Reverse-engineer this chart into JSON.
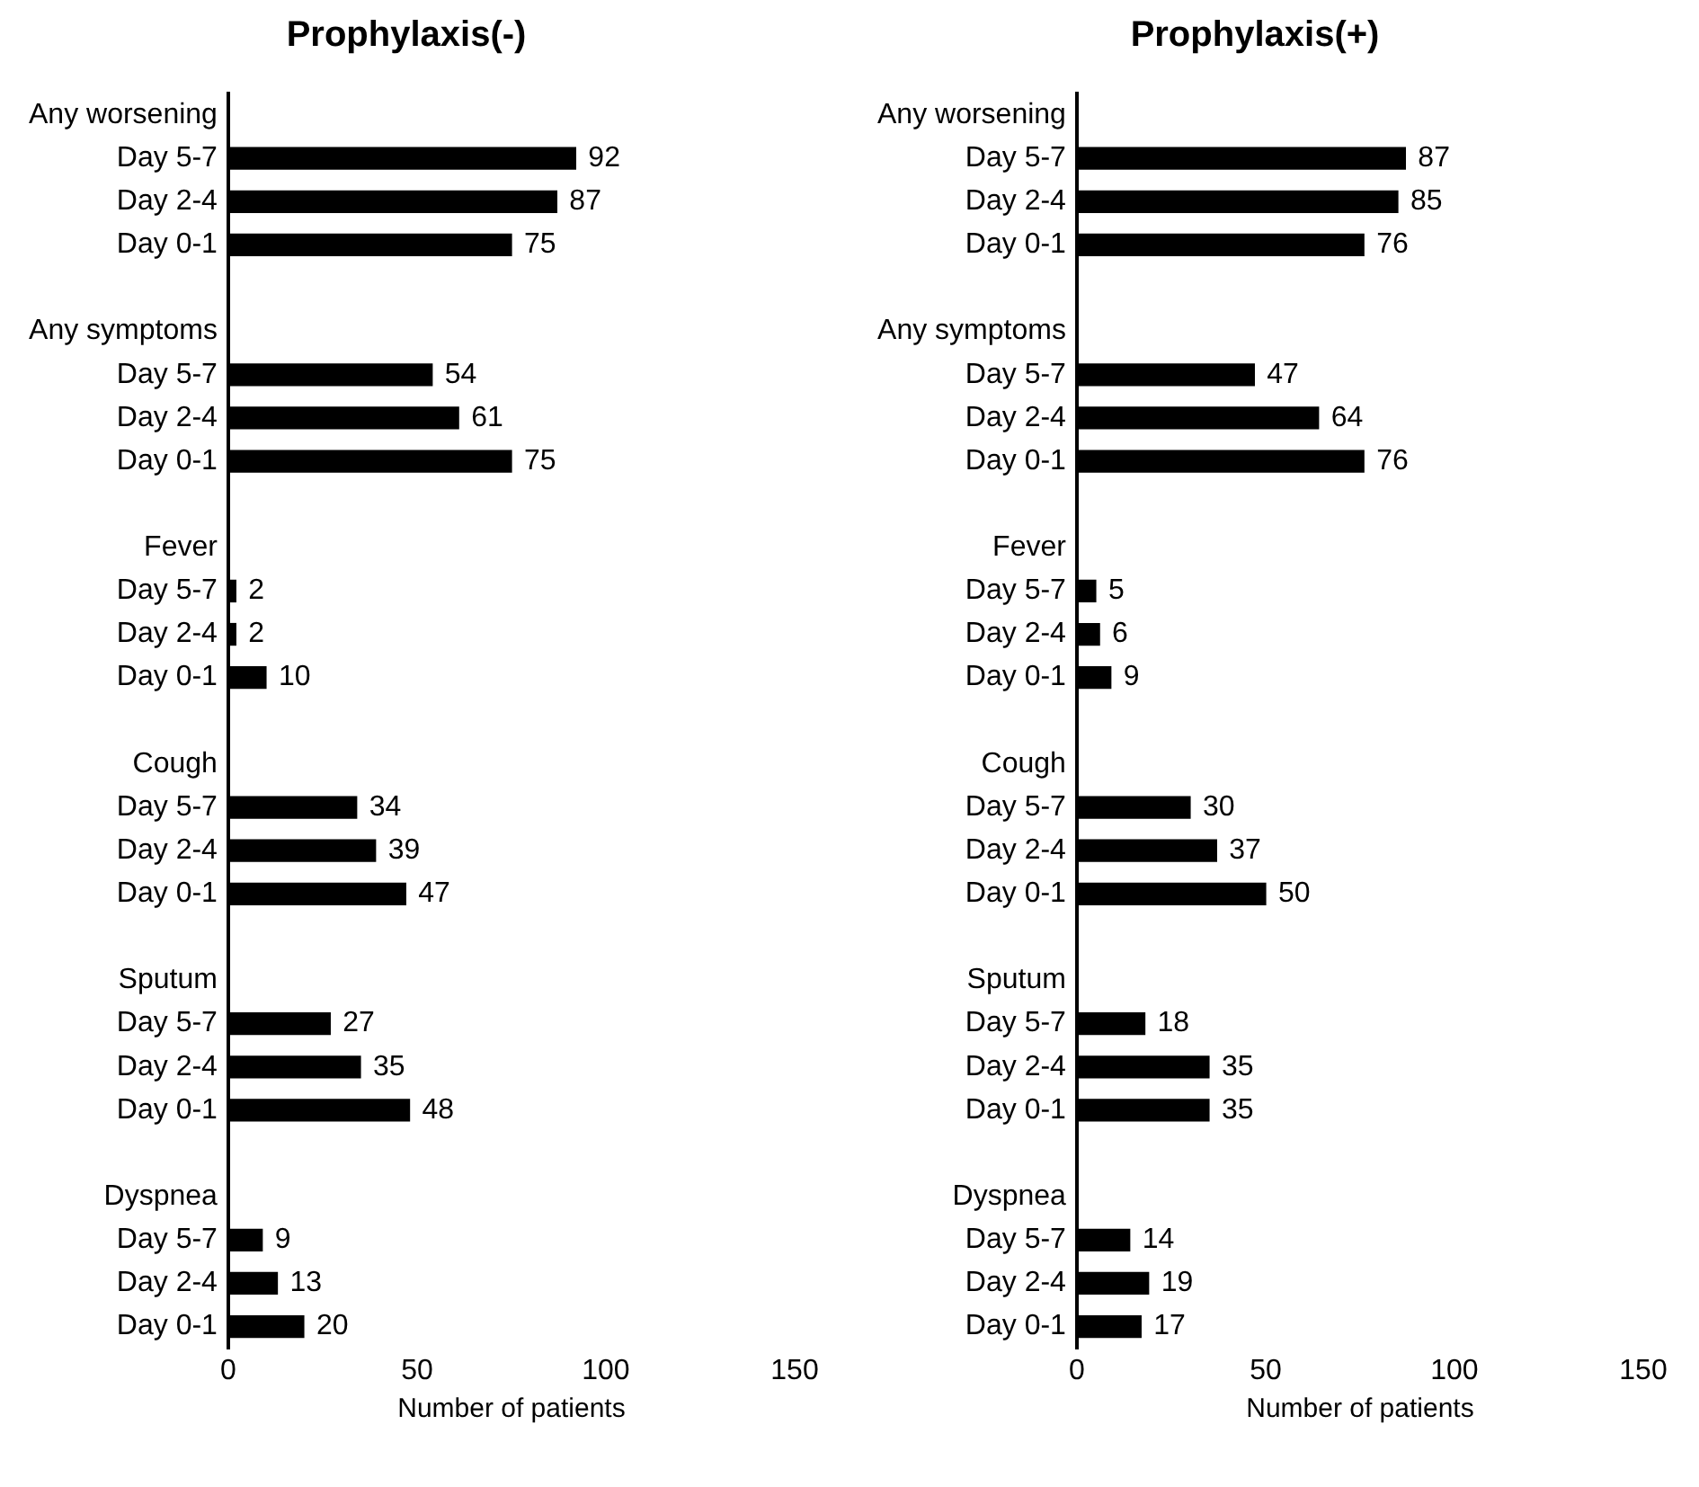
{
  "chart_data": [
    {
      "type": "bar",
      "orientation": "horizontal",
      "title": "Prophylaxis(-)",
      "xlabel": "Number of patients",
      "categories": [
        "Any worsening",
        "Day 5-7",
        "Day 2-4",
        "Day 0-1",
        null,
        "Any symptoms",
        "Day 5-7",
        "Day 2-4",
        "Day 0-1",
        null,
        "Fever",
        "Day 5-7",
        "Day 2-4",
        "Day 0-1",
        null,
        "Cough",
        "Day 5-7",
        "Day 2-4",
        "Day 0-1",
        null,
        "Sputum",
        "Day 5-7",
        "Day 2-4",
        "Day 0-1",
        null,
        "Dyspnea",
        "Day 5-7",
        "Day 2-4",
        "Day 0-1"
      ],
      "values": [
        null,
        92,
        87,
        75,
        null,
        null,
        54,
        61,
        75,
        null,
        null,
        2,
        2,
        10,
        null,
        null,
        34,
        39,
        47,
        null,
        null,
        27,
        35,
        48,
        null,
        null,
        9,
        13,
        20
      ],
      "color": "#000000",
      "xlim": [
        0,
        150
      ],
      "xticks": [
        0,
        50,
        100,
        150
      ],
      "data_labels": true
    },
    {
      "type": "bar",
      "orientation": "horizontal",
      "title": "Prophylaxis(+)",
      "xlabel": "Number of patients",
      "categories": [
        "Any worsening",
        "Day 5-7",
        "Day 2-4",
        "Day 0-1",
        null,
        "Any symptoms",
        "Day 5-7",
        "Day 2-4",
        "Day 0-1",
        null,
        "Fever",
        "Day 5-7",
        "Day 2-4",
        "Day 0-1",
        null,
        "Cough",
        "Day 5-7",
        "Day 2-4",
        "Day 0-1",
        null,
        "Sputum",
        "Day 5-7",
        "Day 2-4",
        "Day 0-1",
        null,
        "Dyspnea",
        "Day 5-7",
        "Day 2-4",
        "Day 0-1"
      ],
      "values": [
        null,
        87,
        85,
        76,
        null,
        null,
        47,
        64,
        76,
        null,
        null,
        5,
        6,
        9,
        null,
        null,
        30,
        37,
        50,
        null,
        null,
        18,
        35,
        35,
        null,
        null,
        14,
        19,
        17
      ],
      "color": "#000000",
      "xlim": [
        0,
        150
      ],
      "xticks": [
        0,
        50,
        100,
        150
      ],
      "data_labels": true
    }
  ]
}
